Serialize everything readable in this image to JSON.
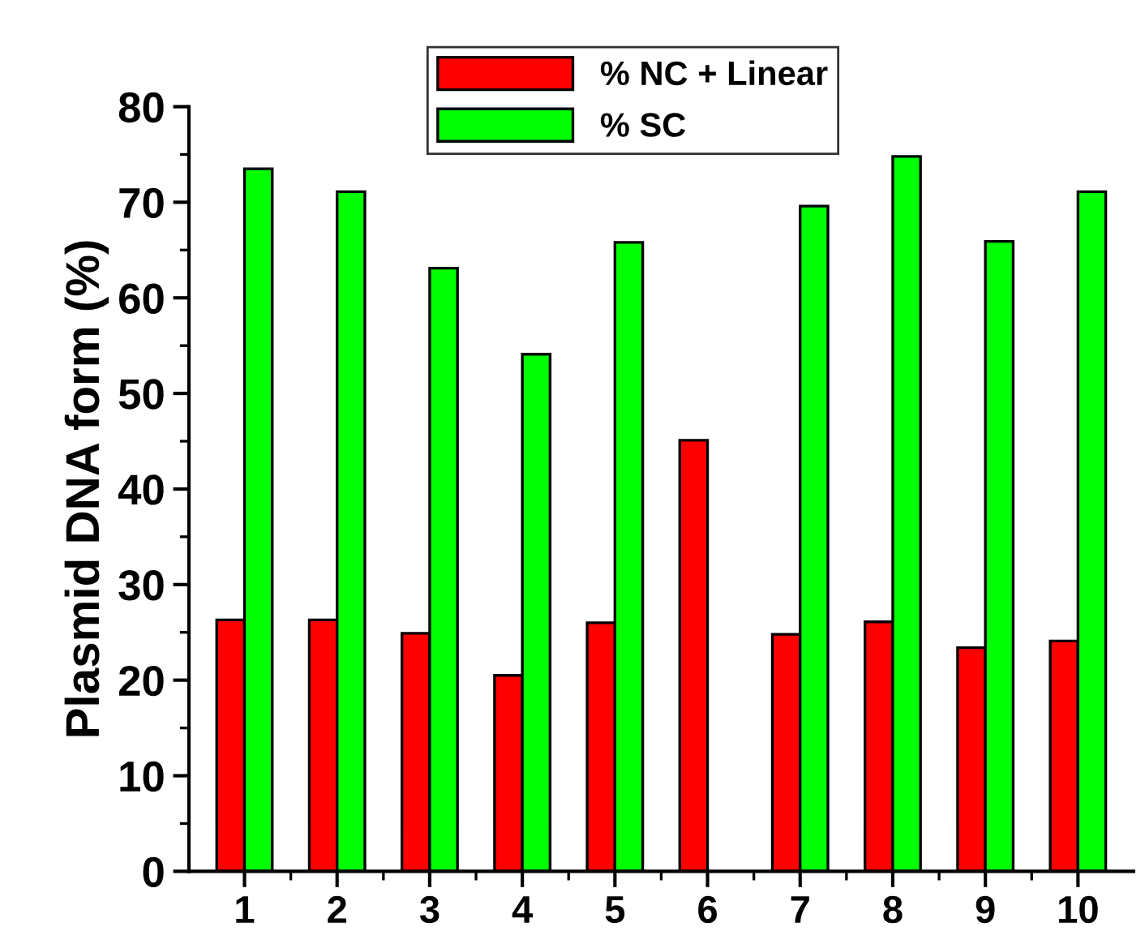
{
  "chart_data": {
    "type": "bar",
    "ylabel": "Plasmid DNA form (%)",
    "categories": [
      "1",
      "2",
      "3",
      "4",
      "5",
      "6",
      "7",
      "8",
      "9",
      "10"
    ],
    "series": [
      {
        "name": "% NC + Linear",
        "color": "#ff0000",
        "values": [
          26.3,
          26.3,
          24.9,
          20.5,
          26.0,
          45.1,
          24.8,
          26.1,
          23.4,
          24.1
        ]
      },
      {
        "name": "% SC",
        "color": "#00ff00",
        "values": [
          73.5,
          71.1,
          63.1,
          54.1,
          65.8,
          null,
          69.6,
          74.8,
          65.9,
          71.1
        ]
      }
    ],
    "ylim": [
      0,
      80
    ],
    "yticks": [
      0,
      10,
      20,
      30,
      40,
      50,
      60,
      70,
      80
    ],
    "grid": false,
    "legend": "top"
  }
}
